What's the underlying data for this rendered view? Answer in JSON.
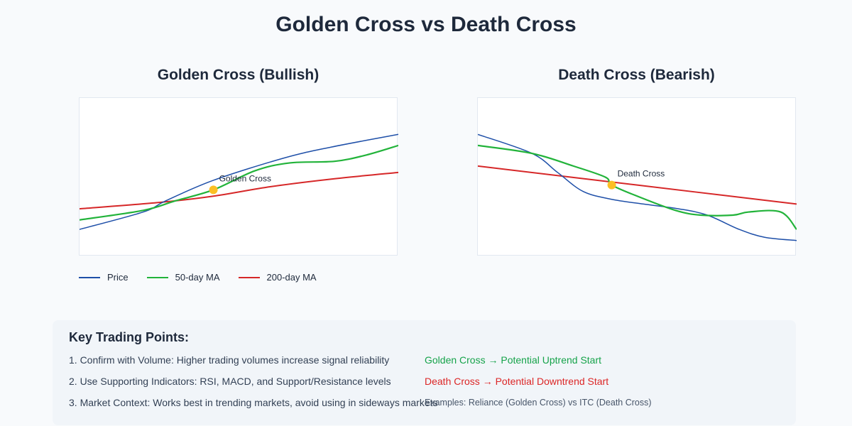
{
  "title": "Golden Cross vs Death Cross",
  "colors": {
    "price": "#1e4fa8",
    "ma50": "#22b33a",
    "ma200": "#d62728",
    "marker": "#fbbf24",
    "green_text": "#16a34a",
    "red_text": "#dc2626"
  },
  "chart_data": [
    {
      "type": "line",
      "title": "Golden Cross (Bullish)",
      "xlim": [
        0,
        100
      ],
      "ylim": [
        0,
        100
      ],
      "grid": false,
      "series": [
        {
          "name": "Price",
          "x": [
            0,
            20,
            27,
            42,
            64,
            79,
            100
          ],
          "y": [
            17,
            28,
            35,
            48,
            62,
            69,
            77
          ]
        },
        {
          "name": "50-day MA",
          "x": [
            0,
            20,
            30,
            42,
            55,
            66,
            80,
            90,
            100
          ],
          "y": [
            23,
            29,
            35,
            42,
            54,
            59,
            60,
            64,
            70
          ]
        },
        {
          "name": "200-day MA",
          "x": [
            0,
            25,
            42,
            60,
            80,
            100
          ],
          "y": [
            30,
            34,
            38,
            44,
            49,
            53
          ]
        }
      ],
      "annotation": {
        "label": "Golden Cross",
        "x": 42,
        "y": 42
      }
    },
    {
      "type": "line",
      "title": "Death Cross (Bearish)",
      "xlim": [
        0,
        100
      ],
      "ylim": [
        0,
        100
      ],
      "grid": false,
      "series": [
        {
          "name": "Price",
          "x": [
            0,
            17,
            25,
            33,
            42,
            52,
            63,
            72,
            82,
            90,
            100
          ],
          "y": [
            77,
            65,
            53,
            41,
            36,
            33,
            30,
            26,
            17,
            12,
            10
          ]
        },
        {
          "name": "50-day MA",
          "x": [
            0,
            17,
            30,
            40,
            42,
            50,
            62,
            70,
            80,
            85,
            95,
            100
          ],
          "y": [
            70,
            65,
            57,
            50,
            45,
            38,
            29,
            26,
            26,
            28,
            28,
            17
          ]
        },
        {
          "name": "200-day MA",
          "x": [
            0,
            50,
            100
          ],
          "y": [
            57,
            45,
            33
          ]
        }
      ],
      "annotation": {
        "label": "Death Cross",
        "x": 42,
        "y": 45
      }
    }
  ],
  "legend": [
    "Price",
    "50-day MA",
    "200-day MA"
  ],
  "key_points": {
    "heading": "Key Trading Points:",
    "items": [
      "1. Confirm with Volume: Higher trading volumes increase signal reliability",
      "2. Use Supporting Indicators: RSI, MACD, and Support/Resistance levels",
      "3. Market Context: Works best in trending markets, avoid using in sideways markets"
    ],
    "golden_note": "Golden Cross → Potential Uptrend Start",
    "death_note": "Death Cross → Potential Downtrend Start",
    "examples": "Examples: Reliance (Golden Cross) vs ITC (Death Cross)"
  }
}
